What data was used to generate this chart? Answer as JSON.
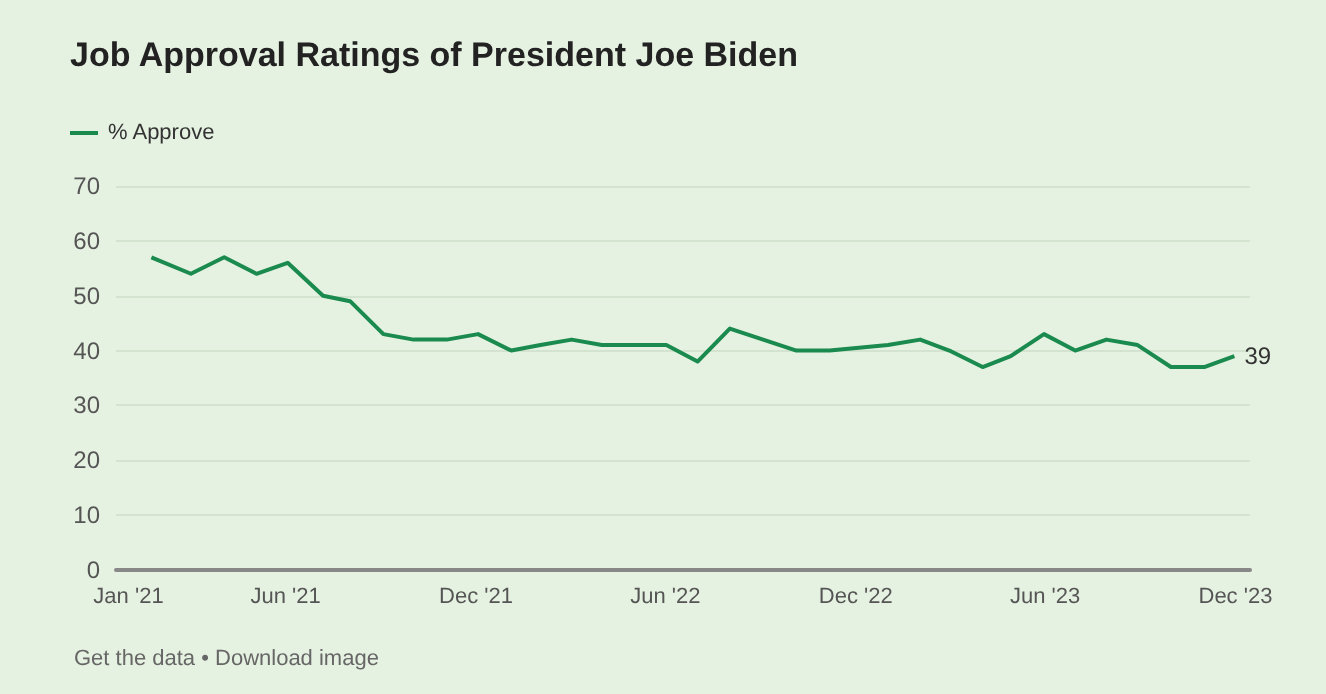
{
  "chart_data": {
    "type": "line",
    "title": "Job Approval Ratings of President Joe Biden",
    "x": [
      "2021-01-23",
      "2021-03-02",
      "2021-04-03",
      "2021-05-04",
      "2021-06-03",
      "2021-07-07",
      "2021-08-02",
      "2021-09-03",
      "2021-10-02",
      "2021-11-03",
      "2021-12-03",
      "2022-01-04",
      "2022-02-01",
      "2022-03-03",
      "2022-04-01",
      "2022-05-04",
      "2022-06-02",
      "2022-07-02",
      "2022-08-02",
      "2022-09-03",
      "2022-10-05",
      "2022-11-06",
      "2023-01-01",
      "2023-02-01",
      "2023-03-01",
      "2023-04-02",
      "2023-04-29",
      "2023-05-31",
      "2023-06-30",
      "2023-07-30",
      "2023-08-29",
      "2023-09-30",
      "2023-11-01",
      "2023-11-30"
    ],
    "series": [
      {
        "name": "% Approve",
        "color": "#1a8a4e",
        "values": [
          57,
          54,
          57,
          54,
          56,
          50,
          49,
          43,
          42,
          42,
          43,
          40,
          41,
          42,
          41,
          41,
          41,
          38,
          44,
          42,
          40,
          40,
          41,
          42,
          40,
          37,
          39,
          43,
          40,
          42,
          41,
          37,
          37,
          39
        ],
        "value_labels": [
          null,
          null,
          null,
          null,
          null,
          null,
          null,
          null,
          null,
          null,
          null,
          null,
          null,
          null,
          null,
          null,
          null,
          null,
          null,
          null,
          null,
          null,
          null,
          null,
          null,
          null,
          null,
          null,
          null,
          null,
          null,
          null,
          null,
          "39"
        ]
      }
    ],
    "xlim": [
      "2020-12-20",
      "2023-12-15"
    ],
    "xticks": [
      {
        "value": "2021-01-01",
        "label": "Jan '21"
      },
      {
        "value": "2021-06-01",
        "label": "Jun '21"
      },
      {
        "value": "2021-12-01",
        "label": "Dec '21"
      },
      {
        "value": "2022-06-01",
        "label": "Jun '22"
      },
      {
        "value": "2022-12-01",
        "label": "Dec '22"
      },
      {
        "value": "2023-06-01",
        "label": "Jun '23"
      },
      {
        "value": "2023-12-01",
        "label": "Dec '23"
      }
    ],
    "ylim": [
      0,
      70
    ],
    "yticks": [
      0,
      10,
      20,
      30,
      40,
      50,
      60,
      70
    ],
    "grid": "y",
    "legend": "top left",
    "annotations": [
      "Get the data • Download image"
    ]
  }
}
